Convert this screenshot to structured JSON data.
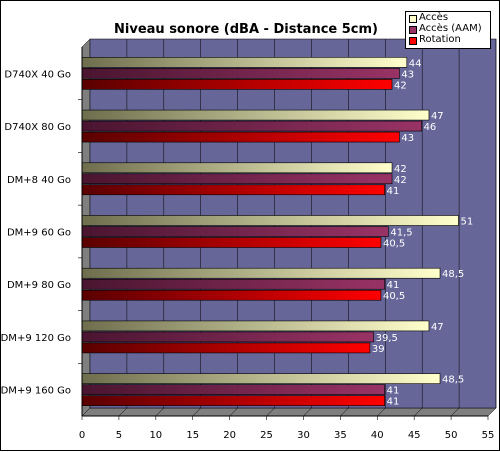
{
  "chart_data": {
    "type": "bar",
    "orientation": "horizontal",
    "title": "Niveau sonore (dBA - Distance 5cm)",
    "categories": [
      "D740X 40 Go",
      "D740X 80 Go",
      "DM+8 40 Go",
      "DM+9 60 Go",
      "DM+9 80 Go",
      "DM+9 120 Go",
      "DM+9 160 Go"
    ],
    "series": [
      {
        "name": "Accès",
        "values": [
          44,
          47,
          42,
          51,
          48.5,
          47,
          48.5
        ],
        "labels": [
          "44",
          "47",
          "42",
          "51",
          "48,5",
          "47",
          "48,5"
        ],
        "color": "#ffffcc"
      },
      {
        "name": "Accès (AAM)",
        "values": [
          43,
          46,
          42,
          41.5,
          41,
          39.5,
          41
        ],
        "labels": [
          "43",
          "46",
          "42",
          "41,5",
          "41",
          "39,5",
          "41"
        ],
        "color": "#993366"
      },
      {
        "name": "Rotation",
        "values": [
          42,
          43,
          41,
          40.5,
          40.5,
          39,
          41
        ],
        "labels": [
          "42",
          "43",
          "41",
          "40,5",
          "40,5",
          "39",
          "41"
        ],
        "color": "#ff0000"
      }
    ],
    "xlim": [
      0,
      55
    ],
    "xticks": [
      "0",
      "5",
      "10",
      "15",
      "20",
      "25",
      "30",
      "35",
      "40",
      "45",
      "50",
      "55"
    ],
    "grid": true,
    "legend_position": "top-right",
    "plot_background": "#666699"
  }
}
